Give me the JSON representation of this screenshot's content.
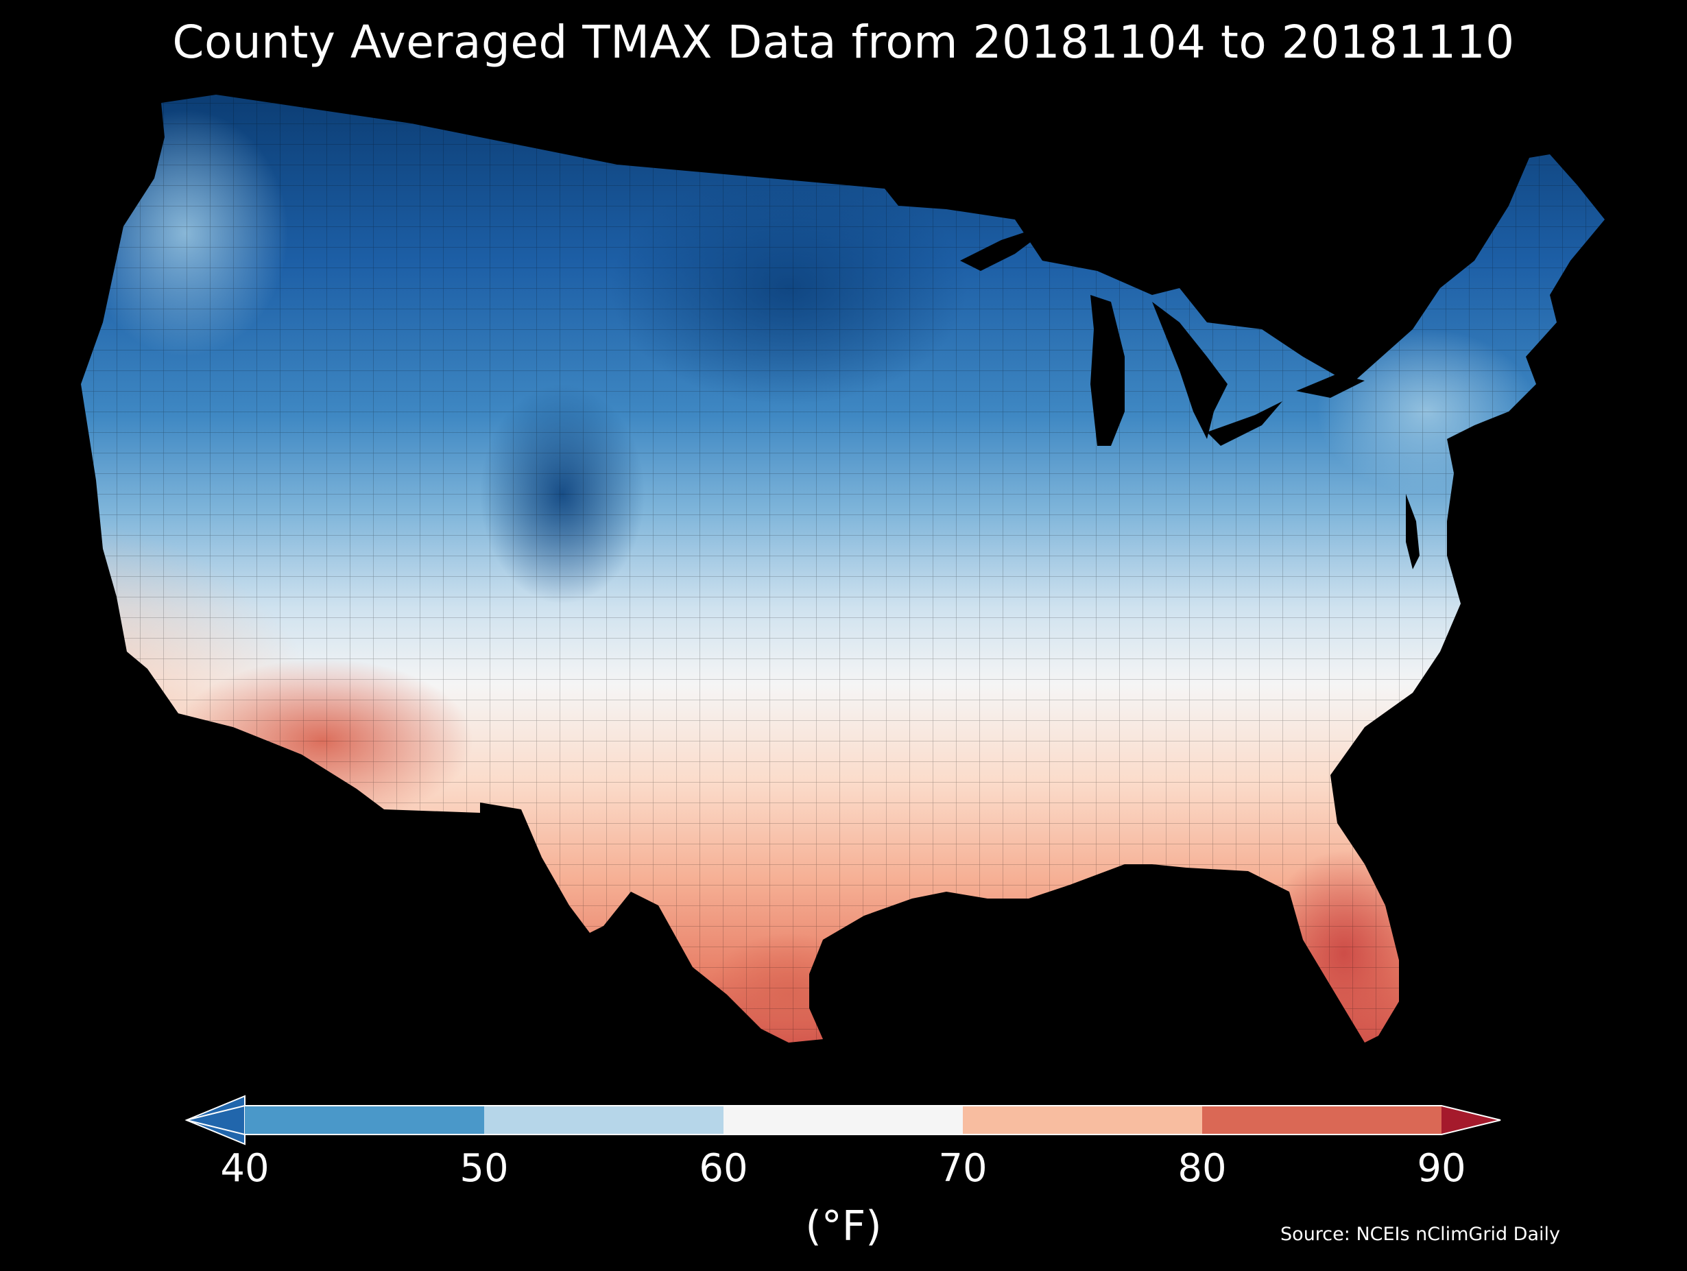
{
  "title": "County Averaged TMAX Data from 20181104 to 20181110",
  "colorbar": {
    "ticks": [
      "40",
      "50",
      "60",
      "70",
      "80",
      "90"
    ],
    "unit": "(°F)",
    "min": 40,
    "max": 90,
    "extend": "both",
    "bins": [
      {
        "from": 40,
        "to": 50,
        "color": "#4a98c9"
      },
      {
        "from": 50,
        "to": 60,
        "color": "#b6d6e9"
      },
      {
        "from": 60,
        "to": 70,
        "color": "#f5f5f5"
      },
      {
        "from": 70,
        "to": 80,
        "color": "#f8bda0"
      },
      {
        "from": 80,
        "to": 90,
        "color": "#da6855"
      }
    ],
    "under_color": "#2166ac",
    "over_color": "#a51a2c"
  },
  "source": "Source: NCEIs nClimGrid Daily",
  "colors": {
    "background": "#000000",
    "deep_blue": "#0b3c72",
    "dark_blue": "#1d5fa6",
    "mid_blue": "#4a98c9",
    "light_blue": "#b6d6e9",
    "white": "#f5f5f5",
    "light_red": "#f8bda0",
    "mid_red": "#da6855"
  }
}
